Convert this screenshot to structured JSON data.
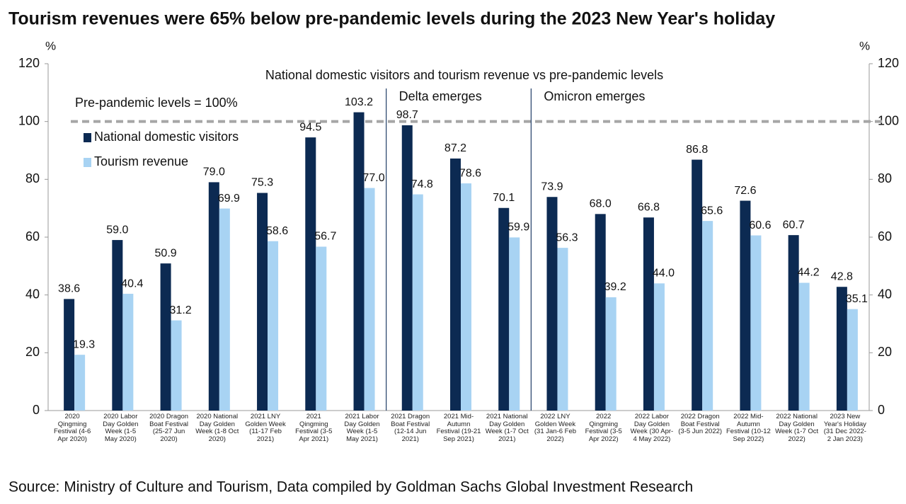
{
  "chart_data": {
    "type": "bar",
    "title": "Tourism revenues were 65% below pre-pandemic levels during the 2023 New Year's holiday",
    "subtitle": "National domestic visitors and tourism revenue vs pre-pandemic levels",
    "source": "Source: Ministry of Culture and Tourism, Data compiled by Goldman Sachs Global Investment Research",
    "ylabel": "%",
    "y2label": "%",
    "categories": [
      "2020 Qingming Festival (4-6 Apr 2020)",
      "2020 Labor Day Golden Week (1-5 May 2020)",
      "2020 Dragon Boat Festival (25-27 Jun 2020)",
      "2020 National Day Golden Week (1-8 Oct 2020)",
      "2021 LNY Golden Week (11-17 Feb 2021)",
      "2021 Qingming Festival (3-5 Apr 2021)",
      "2021 Labor Day Golden Week (1-5 May 2021)",
      "2021 Dragon Boat Festival (12-14 Jun 2021)",
      "2021 Mid-Autumn Festival (19-21 Sep 2021)",
      "2021 National Day Golden Week (1-7 Oct 2021)",
      "2022 LNY Golden Week (31 Jan-6 Feb 2022)",
      "2022 Qingming Festival (3-5 Apr 2022)",
      "2022 Labor Day Golden Week (30 Apr-4 May 2022)",
      "2022 Dragon Boat Festival (3-5 Jun 2022)",
      "2022 Mid-Autumn Festival (10-12 Sep 2022)",
      "2022 National Day Golden Week (1-7 Oct 2022)",
      "2023 New Year's Holiday (31 Dec 2022-2 Jan 2023)"
    ],
    "series": [
      {
        "name": "National domestic visitors",
        "color": "#0c2a52",
        "values": [
          38.6,
          59.0,
          50.9,
          79.0,
          75.3,
          94.5,
          103.2,
          98.7,
          87.2,
          70.1,
          73.9,
          68.0,
          66.8,
          86.8,
          72.6,
          60.7,
          42.8
        ],
        "value_labels": [
          "38.6",
          "59.0",
          "50.9",
          "79.0",
          "75.3",
          "94.5",
          "103.2",
          "98.7",
          "87.2",
          "70.1",
          "73.9",
          "68.0",
          "66.8",
          "86.8",
          "72.6",
          "60.7",
          "42.8"
        ]
      },
      {
        "name": "Tourism revenue",
        "color": "#a8d3f3",
        "values": [
          19.3,
          40.4,
          31.2,
          69.9,
          58.6,
          56.7,
          77.0,
          74.8,
          78.6,
          59.9,
          56.3,
          39.2,
          44.0,
          65.6,
          60.6,
          44.2,
          35.1
        ],
        "value_labels": [
          "19.3",
          "40.4",
          "31.2",
          "69.9",
          "58.6",
          "56.7",
          "77.0",
          "74.8",
          "78.6",
          "59.9",
          "56.3",
          "39.2",
          "44.0",
          "65.6",
          "60.6",
          "44.2",
          "35.1"
        ]
      }
    ],
    "ylim": [
      0,
      120
    ],
    "yticks": [
      0,
      20,
      40,
      60,
      80,
      100,
      120
    ],
    "y2lim": [
      0,
      120
    ],
    "y2ticks": [
      0,
      20,
      40,
      60,
      80,
      100,
      120
    ],
    "reference_line": {
      "value": 100,
      "label": "Pre-pandemic levels = 100%",
      "color": "#a6a6a6"
    },
    "annotations": [
      {
        "text": "Delta emerges",
        "category_index": 7
      },
      {
        "text": "Omicron emerges",
        "category_index": 10
      }
    ],
    "legend": "top-left",
    "grid": false
  }
}
